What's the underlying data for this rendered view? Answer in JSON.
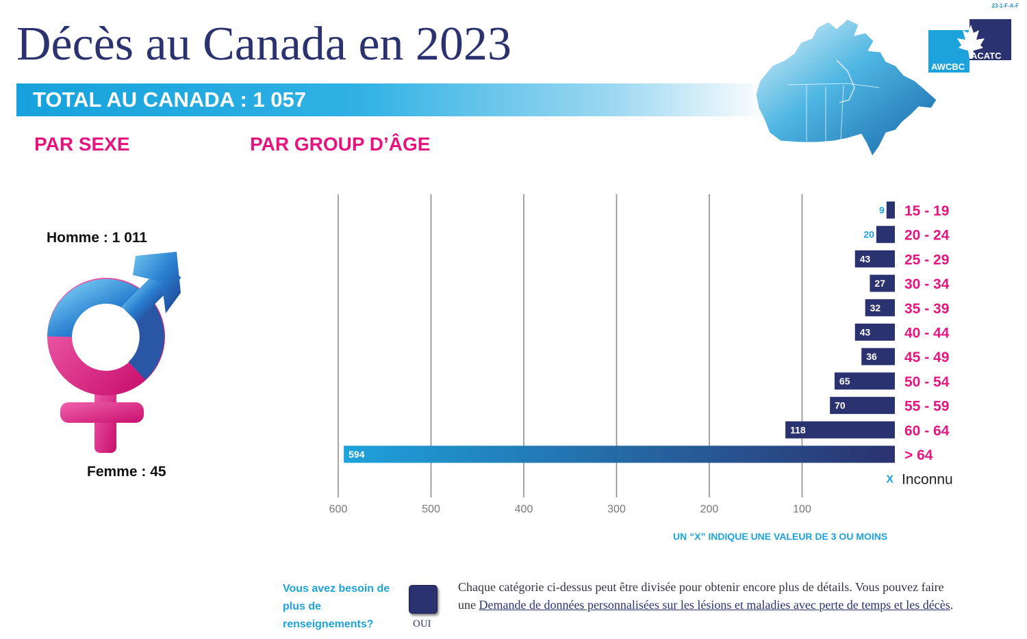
{
  "doc_code": "23-1-F-A-F",
  "title": "Décès au Canada en 2023",
  "total": "TOTAL AU CANADA : 1 057",
  "by_sex_heading": "PAR SEXE",
  "by_age_heading": "PAR GROUP D’ÂGE",
  "logo": {
    "left_text": "AWCBC",
    "right_text": "ACATC"
  },
  "sex": {
    "male_label": "Homme : 1 011",
    "female_label": "Femme : 45"
  },
  "note": "UN “X” INDIQUE UNE VALEUR DE 3 OU MOINS",
  "footer": {
    "question": "Vous avez besoin de plus de renseignements?",
    "button_label": "OUI",
    "text_before": "Chaque catégorie ci-dessus peut être divisée pour obtenir encore plus de détails. Vous pouvez faire une ",
    "link_text": "Demande de données personnalisées sur les lésions et maladies avec perte de temps et les décès",
    "text_after": "."
  },
  "colors": {
    "navy": "#2b3270",
    "blue": "#1ea2db",
    "pink": "#e4157f"
  },
  "icons": [
    "canada-map-icon",
    "maple-leaf-icon",
    "gender-symbol-icon"
  ],
  "chart_data": {
    "type": "bar",
    "orientation": "horizontal",
    "x_direction": "reversed",
    "categories": [
      "15 - 19",
      "20 - 24",
      "25 - 29",
      "30 - 34",
      "35 - 39",
      "40 - 44",
      "45 - 49",
      "50 - 54",
      "55 - 59",
      "60 - 64",
      "> 64",
      "Inconnu"
    ],
    "values": [
      9,
      20,
      43,
      27,
      32,
      43,
      36,
      65,
      70,
      118,
      594,
      null
    ],
    "value_labels": [
      "9",
      "20",
      "43",
      "27",
      "32",
      "43",
      "36",
      "65",
      "70",
      "118",
      "594",
      "X"
    ],
    "x_ticks": [
      600,
      500,
      400,
      300,
      200,
      100
    ],
    "xlim": [
      0,
      600
    ],
    "grid": true
  }
}
